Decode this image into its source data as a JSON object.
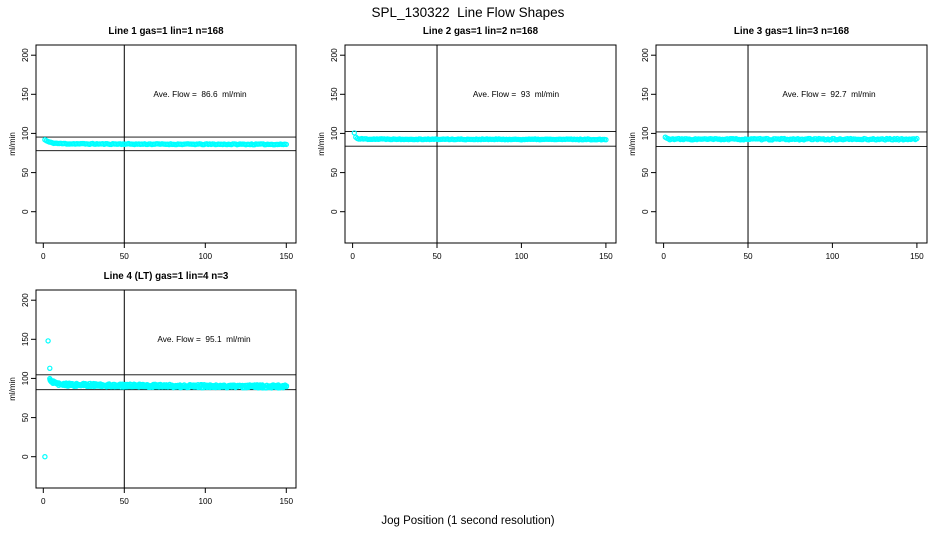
{
  "chart_data": {
    "type": "scatter",
    "title": "SPL_130322  Line Flow Shapes",
    "xlabel": "Jog Position (1 second resolution)",
    "point_color": "#00ffff",
    "layout": "2 rows x 3 cols, 4 panels used, legend none, grid off",
    "panels": [
      {
        "title": "Line 1 gas=1 lin=1 n=168",
        "ylabel": "ml/min",
        "ave_flow": 86.6,
        "ave_flow_label": "Ave. Flow =  86.6  ml/min",
        "n": 168,
        "xticks": [
          0,
          50,
          100,
          150
        ],
        "yticks": [
          0,
          50,
          100,
          150,
          200
        ],
        "xlim": [
          -4.5,
          156
        ],
        "ylim": [
          -40,
          213
        ],
        "vline_x": 50,
        "ref_lines": [
          95.3,
          77.9
        ],
        "band": {
          "x_start": 1,
          "x_end": 150,
          "points": 168,
          "series": 1,
          "flat": 86.0,
          "amp": 5.0,
          "tau": 3.0,
          "amp2": 1.0,
          "tau2": 60,
          "jitter": 0.55
        },
        "outliers": [],
        "seed": 11
      },
      {
        "title": "Line 2 gas=1 lin=2 n=168",
        "ylabel": "ml/min",
        "ave_flow": 93,
        "ave_flow_label": "Ave. Flow =  93  ml/min",
        "n": 168,
        "xticks": [
          0,
          50,
          100,
          150
        ],
        "yticks": [
          0,
          50,
          100,
          150,
          200
        ],
        "xlim": [
          -4.5,
          156
        ],
        "ylim": [
          -40,
          213
        ],
        "vline_x": 50,
        "ref_lines": [
          102.3,
          83.7
        ],
        "band": {
          "x_start": 1,
          "x_end": 150,
          "points": 168,
          "series": 1,
          "flat": 92.3,
          "amp": 7.5,
          "tau": 0.8,
          "amp2": 0.7,
          "tau2": 50,
          "jitter": 0.5
        },
        "outliers": [],
        "seed": 22
      },
      {
        "title": "Line 3 gas=1 lin=3 n=168",
        "ylabel": "ml/min",
        "ave_flow": 92.7,
        "ave_flow_label": "Ave. Flow =  92.7  ml/min",
        "n": 168,
        "xticks": [
          0,
          50,
          100,
          150
        ],
        "yticks": [
          0,
          50,
          100,
          150,
          200
        ],
        "xlim": [
          -4.5,
          156
        ],
        "ylim": [
          -40,
          213
        ],
        "vline_x": 50,
        "ref_lines": [
          102.0,
          83.4
        ],
        "band": {
          "x_start": 1,
          "x_end": 150,
          "points": 168,
          "series": 1,
          "flat": 92.6,
          "amp": 2.5,
          "tau": 1.0,
          "amp2": 0.0,
          "tau2": 50,
          "jitter": 0.85
        },
        "outliers": [],
        "seed": 33
      },
      {
        "title": "Line 4 (LT) gas=1 lin=4 n=3",
        "ylabel": "ml/min",
        "ave_flow": 95.1,
        "ave_flow_label": "Ave. Flow =  95.1  ml/min",
        "n": 3,
        "xticks": [
          0,
          50,
          100,
          150
        ],
        "yticks": [
          0,
          50,
          100,
          150,
          200
        ],
        "xlim": [
          -4.5,
          156
        ],
        "ylim": [
          -40,
          213
        ],
        "vline_x": 50,
        "ref_lines": [
          104.6,
          85.6
        ],
        "band": {
          "x_start": 4,
          "x_end": 150,
          "points": 147,
          "series": 3,
          "flat": 89.5,
          "amp": 6.0,
          "tau": 3.0,
          "amp2": 3.0,
          "tau2": 60,
          "jitter": 2.0
        },
        "outliers": [
          [
            3,
            148
          ],
          [
            4,
            113
          ],
          [
            1,
            0
          ]
        ],
        "seed": 44
      }
    ]
  }
}
